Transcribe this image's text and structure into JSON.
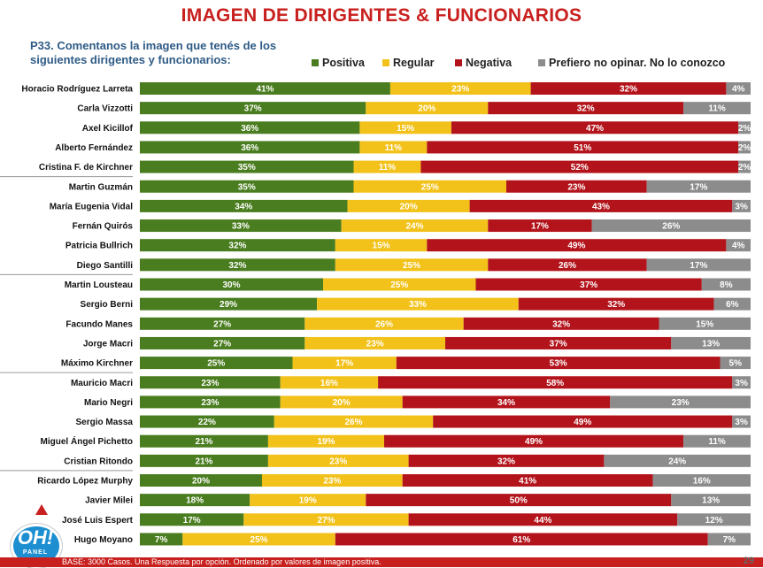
{
  "title": "IMAGEN DE DIRIGENTES & FUNCIONARIOS",
  "question": "P33. Comentanos la imagen que tenés de los siguientes dirigentes y funcionarios:",
  "footer": "BASE: 3000 Casos. Una Respuesta por opción. Ordenado por valores de imagen positiva.",
  "page_number": "29",
  "logo": {
    "text": "OH!",
    "sub": "PANEL"
  },
  "colors": {
    "Positiva": "#4a7d1f",
    "Regular": "#f2c21b",
    "Negativa": "#b3141b",
    "Prefiero no opinar. No lo conozco": "#8c8c8c"
  },
  "chart_data": {
    "type": "bar",
    "orientation": "horizontal",
    "stacked": true,
    "unit": "%",
    "xlim": [
      0,
      100
    ],
    "categories": [
      "Horacio Rodríguez Larreta",
      "Carla Vizzotti",
      "Axel Kicillof",
      "Alberto Fernández",
      "Cristina F. de Kirchner",
      "Martin Guzmán",
      "María Eugenia Vidal",
      "Fernán Quirós",
      "Patricia Bullrich",
      "Diego Santilli",
      "Martin Lousteau",
      "Sergio Berni",
      "Facundo Manes",
      "Jorge Macri",
      "Máximo Kirchner",
      "Mauricio Macri",
      "Mario Negri",
      "Sergio Massa",
      "Miguel Ángel Pichetto",
      "Cristian Ritondo",
      "Ricardo López Murphy",
      "Javier Milei",
      "José Luis Espert",
      "Hugo Moyano"
    ],
    "series": [
      {
        "name": "Positiva",
        "values": [
          41,
          37,
          36,
          36,
          35,
          35,
          34,
          33,
          32,
          32,
          30,
          29,
          27,
          27,
          25,
          23,
          23,
          22,
          21,
          21,
          20,
          18,
          17,
          7
        ]
      },
      {
        "name": "Regular",
        "values": [
          23,
          20,
          15,
          11,
          11,
          25,
          20,
          24,
          15,
          25,
          25,
          33,
          26,
          23,
          17,
          16,
          20,
          26,
          19,
          23,
          23,
          19,
          27,
          25
        ]
      },
      {
        "name": "Negativa",
        "values": [
          32,
          32,
          47,
          51,
          52,
          23,
          43,
          17,
          49,
          26,
          37,
          32,
          32,
          37,
          53,
          58,
          34,
          49,
          49,
          32,
          41,
          50,
          44,
          61
        ]
      },
      {
        "name": "Prefiero no opinar. No lo conozco",
        "values": [
          4,
          11,
          2,
          2,
          2,
          17,
          3,
          26,
          4,
          17,
          8,
          6,
          15,
          13,
          5,
          3,
          23,
          3,
          11,
          24,
          16,
          13,
          12,
          7
        ]
      }
    ],
    "legend_position": "top-right",
    "group_separators_after": [
      4,
      9,
      14,
      19
    ]
  }
}
